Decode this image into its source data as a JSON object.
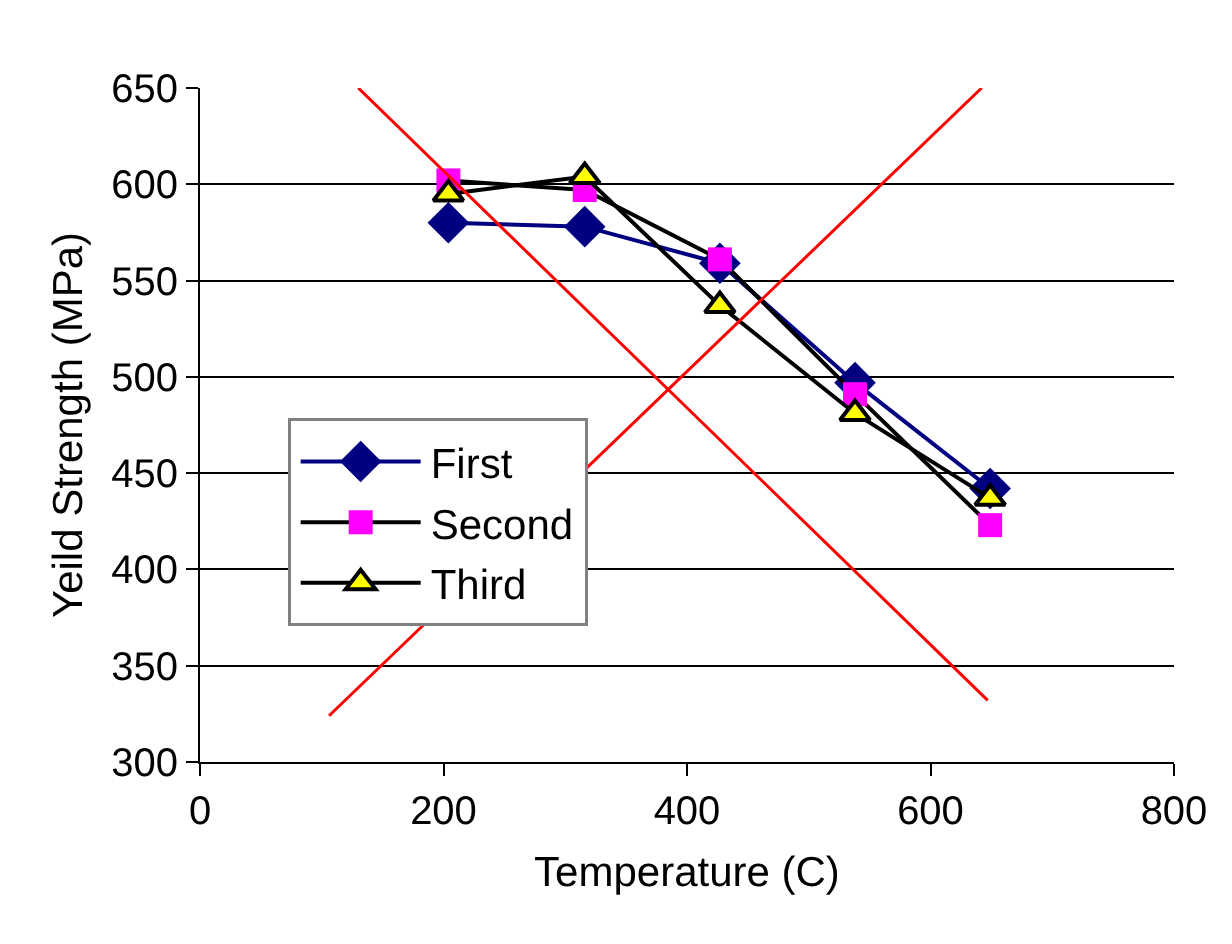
{
  "chart_data": {
    "type": "line",
    "xlabel": "Temperature (C)",
    "ylabel": "Yeild Strength (MPa)",
    "x": [
      204,
      316,
      427,
      538,
      649
    ],
    "series": [
      {
        "name": "First",
        "color": "#000080",
        "marker": "diamond",
        "values": [
          580,
          578,
          559,
          497,
          442
        ]
      },
      {
        "name": "Second",
        "color": "#ff00ff",
        "marker": "square",
        "values": [
          602,
          597,
          561,
          491,
          423
        ]
      },
      {
        "name": "Third",
        "color": "#ffff00",
        "marker": "triangle",
        "values": [
          595,
          604,
          537,
          481,
          437
        ]
      },
      {
        "type": "line",
        "color": "#ff0000",
        "marker": "none",
        "x": [
          130,
          647
        ],
        "values": [
          650,
          332
        ]
      },
      {
        "type": "line",
        "color": "#ff0000",
        "marker": "none",
        "x": [
          106,
          642
        ],
        "values": [
          324,
          650
        ]
      }
    ],
    "xlim": [
      0,
      800
    ],
    "xticks": [
      0,
      200,
      400,
      600,
      800
    ],
    "ylim": [
      300,
      650
    ],
    "yticks": [
      300,
      350,
      400,
      450,
      500,
      550,
      600,
      650
    ],
    "grid": "y",
    "legend": "left",
    "line_style": "solid"
  }
}
